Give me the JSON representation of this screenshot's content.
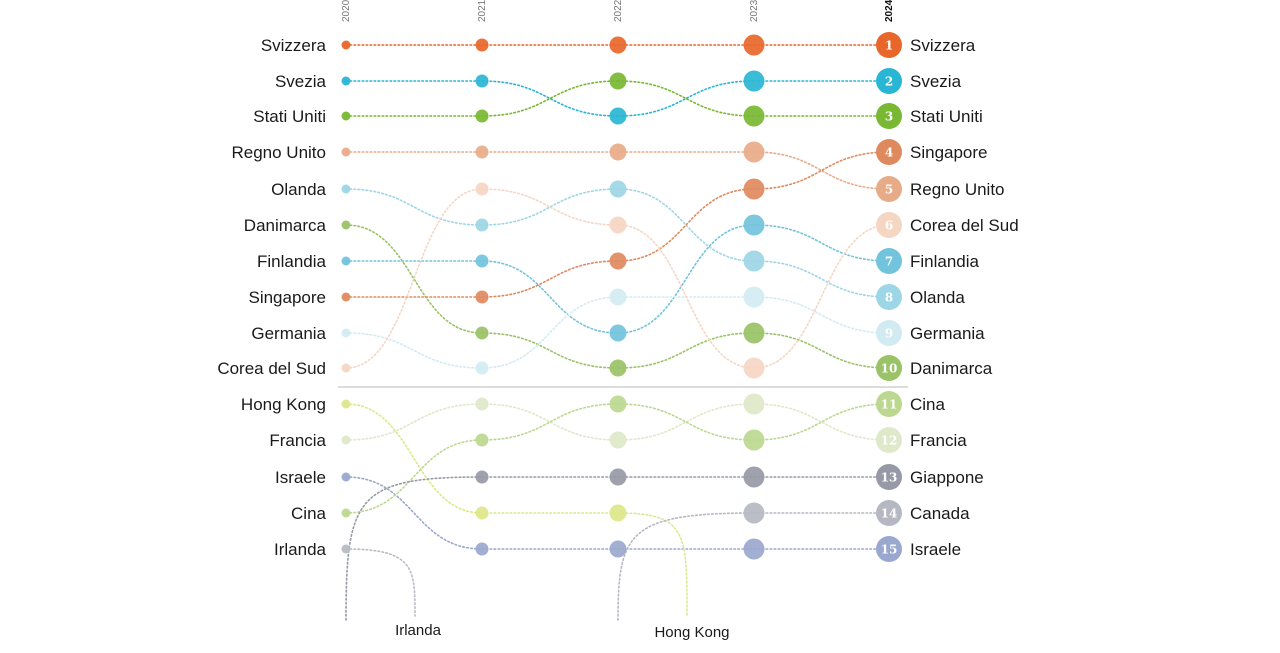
{
  "chart_data": {
    "type": "bump",
    "years": [
      "2020",
      "2021",
      "2022",
      "2023",
      "2024"
    ],
    "highlight_year": "2024",
    "top_group_size": 10,
    "series": [
      {
        "name": "Svizzera",
        "ranks": [
          1,
          1,
          1,
          1,
          1
        ],
        "color": "#e8662a"
      },
      {
        "name": "Svezia",
        "ranks": [
          2,
          2,
          3,
          2,
          2
        ],
        "color": "#29b6d4"
      },
      {
        "name": "Stati Uniti",
        "ranks": [
          3,
          3,
          2,
          3,
          3
        ],
        "color": "#78b833"
      },
      {
        "name": "Regno Unito",
        "ranks": [
          4,
          4,
          4,
          4,
          5
        ],
        "color": "#e8ab88"
      },
      {
        "name": "Olanda",
        "ranks": [
          5,
          6,
          5,
          7,
          8
        ],
        "color": "#9dd6e6"
      },
      {
        "name": "Danimarca",
        "ranks": [
          6,
          9,
          10,
          9,
          10
        ],
        "color": "#9ac267"
      },
      {
        "name": "Finlandia",
        "ranks": [
          7,
          7,
          9,
          6,
          7
        ],
        "color": "#72c3dc"
      },
      {
        "name": "Singapore",
        "ranks": [
          8,
          8,
          7,
          5,
          4
        ],
        "color": "#df8a5e"
      },
      {
        "name": "Germania",
        "ranks": [
          9,
          10,
          8,
          8,
          9
        ],
        "color": "#d2ebf3"
      },
      {
        "name": "Corea del Sud",
        "ranks": [
          10,
          5,
          6,
          10,
          6
        ],
        "color": "#f5d6c3"
      },
      {
        "name": "Hong Kong",
        "ranks": [
          11,
          14,
          14,
          null,
          null
        ],
        "color": "#dde789"
      },
      {
        "name": "Francia",
        "ranks": [
          12,
          11,
          12,
          11,
          12
        ],
        "color": "#dfe8c9"
      },
      {
        "name": "Israele",
        "ranks": [
          13,
          15,
          15,
          15,
          15
        ],
        "color": "#9aa8cf"
      },
      {
        "name": "Cina",
        "ranks": [
          14,
          12,
          11,
          12,
          11
        ],
        "color": "#bcd890"
      },
      {
        "name": "Irlanda",
        "ranks": [
          15,
          null,
          null,
          null,
          null
        ],
        "color": "#b9bcc4"
      },
      {
        "name": "Giappone",
        "ranks": [
          null,
          13,
          13,
          13,
          13
        ],
        "color": "#979aa6"
      },
      {
        "name": "Canada",
        "ranks": [
          null,
          null,
          null,
          14,
          14
        ],
        "color": "#b5b8c2"
      }
    ],
    "right_labels_order": [
      "Svizzera",
      "Svezia",
      "Stati Uniti",
      "Singapore",
      "Regno Unito",
      "Corea del Sud",
      "Finlandia",
      "Olanda",
      "Germania",
      "Danimarca",
      "Cina",
      "Francia",
      "Giappone",
      "Canada",
      "Israele"
    ],
    "dropout_labels": [
      "Irlanda",
      "Hong Kong"
    ]
  }
}
